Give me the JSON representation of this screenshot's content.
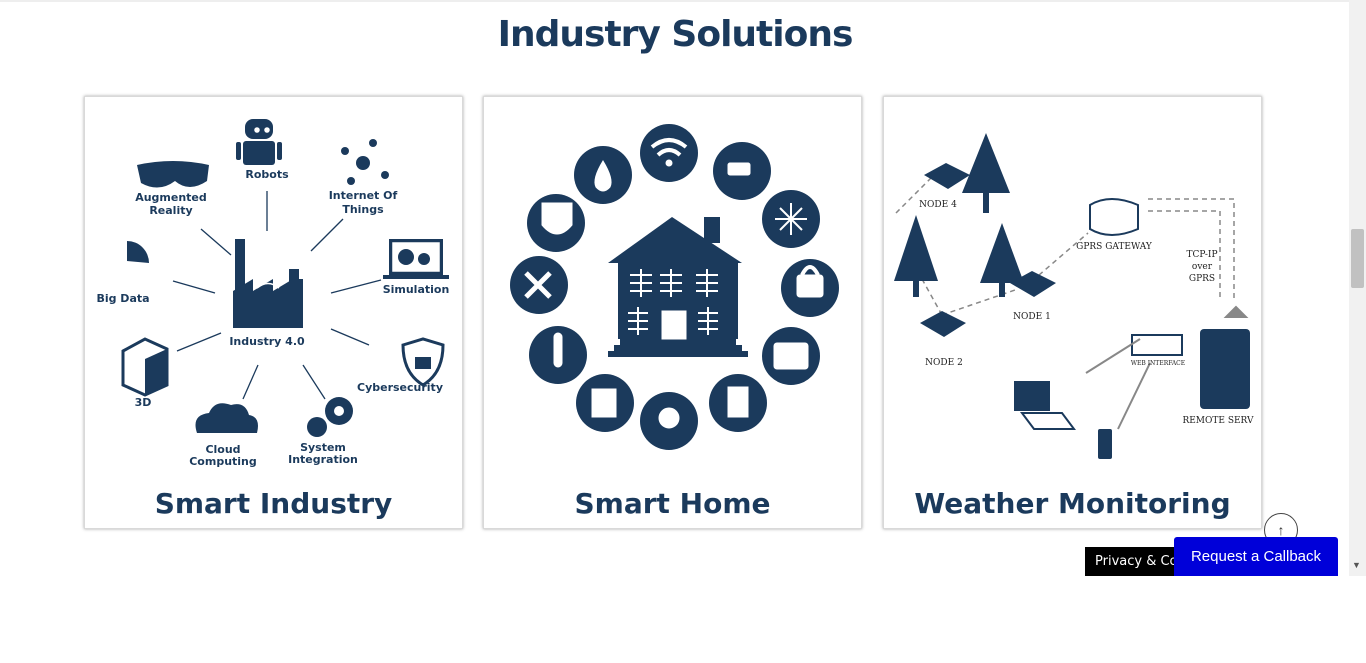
{
  "section": {
    "title": "Industry Solutions"
  },
  "cards": [
    {
      "title": "Smart Industry",
      "labels": {
        "center": "Industry 4.0",
        "robots": "Robots",
        "ar1": "Augmented",
        "ar2": "Reality",
        "iot1": "Internet Of",
        "iot2": "Things",
        "bigdata": "Big Data",
        "simulation": "Simulation",
        "threed": "3D",
        "cyber": "Cybersecurity",
        "cloud1": "Cloud",
        "cloud2": "Computing",
        "sys1": "System",
        "sys2": "Integration"
      }
    },
    {
      "title": "Smart Home"
    },
    {
      "title": "Weather Monitoring",
      "labels": {
        "node4": "NODE 4",
        "node1": "NODE 1",
        "node2": "NODE 2",
        "gateway": "GPRS GATEWAY",
        "tcp1": "TCP-IP",
        "tcp2": "over",
        "tcp3": "GPRS",
        "web": "WEB INTERFACE",
        "remote": "REMOTE SERV"
      }
    }
  ],
  "widgets": {
    "privacy": "Privacy & Coo",
    "callback": "Request a Callback",
    "back_top": "↑",
    "scroll_down": "▼"
  },
  "colors": {
    "brand_navy": "#1b3a5c",
    "callback_blue": "#0000d9"
  }
}
